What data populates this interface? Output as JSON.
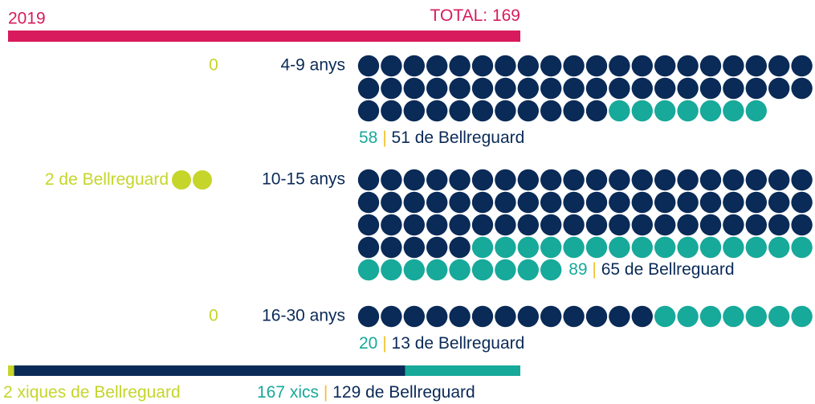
{
  "year": "2019",
  "total_label": "TOTAL:",
  "total": 169,
  "place": "de Bellreguard",
  "separator": "|",
  "colors": {
    "accent": "#d81b5c",
    "local": "#0a2a57",
    "other": "#17a99a",
    "girls": "#c5d52a",
    "separator": "#f2c12e"
  },
  "per_row": 20,
  "groups": [
    {
      "label": "4-9 anys",
      "girls": 0,
      "total": 58,
      "local": 51
    },
    {
      "label": "10-15 anys",
      "girls": 2,
      "total": 89,
      "local": 65
    },
    {
      "label": "16-30 anys",
      "girls": 0,
      "total": 20,
      "local": 13
    }
  ],
  "footer": {
    "girls": 2,
    "girls_text": "xiques de Bellreguard",
    "boys": 167,
    "boys_text": "xics",
    "boys_local": 129
  }
}
